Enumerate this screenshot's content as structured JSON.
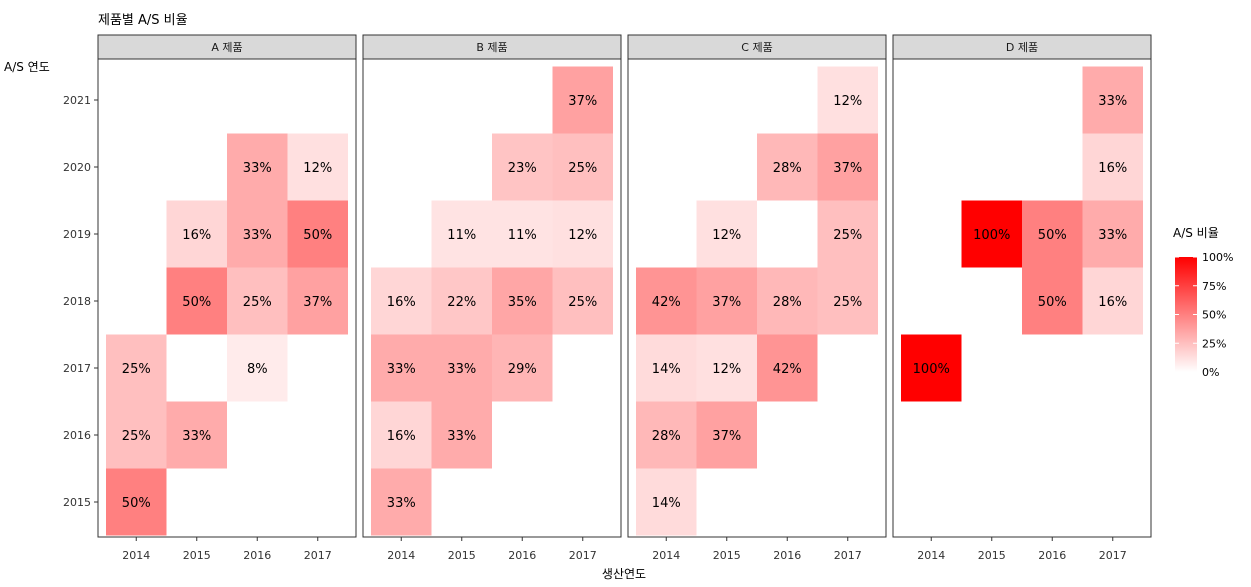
{
  "chart_data": {
    "type": "heatmap",
    "title": "제품별 A/S 비율",
    "xlabel": "생산연도",
    "ylabel": "A/S 연도",
    "x_categories": [
      "2014",
      "2015",
      "2016",
      "2017"
    ],
    "y_categories": [
      "2015",
      "2016",
      "2017",
      "2018",
      "2019",
      "2020",
      "2021"
    ],
    "legend": {
      "title": "A/S 비율",
      "position": "right",
      "labels": [
        "100%",
        "75%",
        "50%",
        "25%",
        "0%"
      ],
      "range": [
        0,
        100
      ],
      "low_color": "#ffffff",
      "high_color": "#ff0000"
    },
    "panels": [
      {
        "label": "A 제품",
        "cells": [
          {
            "x": "2014",
            "y": "2015",
            "value": 50,
            "label": "50%"
          },
          {
            "x": "2014",
            "y": "2016",
            "value": 25,
            "label": "25%"
          },
          {
            "x": "2015",
            "y": "2016",
            "value": 33,
            "label": "33%"
          },
          {
            "x": "2014",
            "y": "2017",
            "value": 25,
            "label": "25%"
          },
          {
            "x": "2016",
            "y": "2017",
            "value": 8,
            "label": "8%"
          },
          {
            "x": "2015",
            "y": "2018",
            "value": 50,
            "label": "50%"
          },
          {
            "x": "2016",
            "y": "2018",
            "value": 25,
            "label": "25%"
          },
          {
            "x": "2017",
            "y": "2018",
            "value": 37,
            "label": "37%"
          },
          {
            "x": "2015",
            "y": "2019",
            "value": 16,
            "label": "16%"
          },
          {
            "x": "2016",
            "y": "2019",
            "value": 33,
            "label": "33%"
          },
          {
            "x": "2017",
            "y": "2019",
            "value": 50,
            "label": "50%"
          },
          {
            "x": "2016",
            "y": "2020",
            "value": 33,
            "label": "33%"
          },
          {
            "x": "2017",
            "y": "2020",
            "value": 12,
            "label": "12%"
          }
        ]
      },
      {
        "label": "B 제품",
        "cells": [
          {
            "x": "2014",
            "y": "2015",
            "value": 33,
            "label": "33%"
          },
          {
            "x": "2014",
            "y": "2016",
            "value": 16,
            "label": "16%"
          },
          {
            "x": "2015",
            "y": "2016",
            "value": 33,
            "label": "33%"
          },
          {
            "x": "2014",
            "y": "2017",
            "value": 33,
            "label": "33%"
          },
          {
            "x": "2015",
            "y": "2017",
            "value": 33,
            "label": "33%"
          },
          {
            "x": "2016",
            "y": "2017",
            "value": 29,
            "label": "29%"
          },
          {
            "x": "2014",
            "y": "2018",
            "value": 16,
            "label": "16%"
          },
          {
            "x": "2015",
            "y": "2018",
            "value": 22,
            "label": "22%"
          },
          {
            "x": "2016",
            "y": "2018",
            "value": 35,
            "label": "35%"
          },
          {
            "x": "2017",
            "y": "2018",
            "value": 25,
            "label": "25%"
          },
          {
            "x": "2015",
            "y": "2019",
            "value": 11,
            "label": "11%"
          },
          {
            "x": "2016",
            "y": "2019",
            "value": 11,
            "label": "11%"
          },
          {
            "x": "2017",
            "y": "2019",
            "value": 12,
            "label": "12%"
          },
          {
            "x": "2016",
            "y": "2020",
            "value": 23,
            "label": "23%"
          },
          {
            "x": "2017",
            "y": "2020",
            "value": 25,
            "label": "25%"
          },
          {
            "x": "2017",
            "y": "2021",
            "value": 37,
            "label": "37%"
          }
        ]
      },
      {
        "label": "C 제품",
        "cells": [
          {
            "x": "2014",
            "y": "2015",
            "value": 14,
            "label": "14%"
          },
          {
            "x": "2014",
            "y": "2016",
            "value": 28,
            "label": "28%"
          },
          {
            "x": "2015",
            "y": "2016",
            "value": 37,
            "label": "37%"
          },
          {
            "x": "2014",
            "y": "2017",
            "value": 14,
            "label": "14%"
          },
          {
            "x": "2015",
            "y": "2017",
            "value": 12,
            "label": "12%"
          },
          {
            "x": "2016",
            "y": "2017",
            "value": 42,
            "label": "42%"
          },
          {
            "x": "2014",
            "y": "2018",
            "value": 42,
            "label": "42%"
          },
          {
            "x": "2015",
            "y": "2018",
            "value": 37,
            "label": "37%"
          },
          {
            "x": "2016",
            "y": "2018",
            "value": 28,
            "label": "28%"
          },
          {
            "x": "2017",
            "y": "2018",
            "value": 25,
            "label": "25%"
          },
          {
            "x": "2015",
            "y": "2019",
            "value": 12,
            "label": "12%"
          },
          {
            "x": "2016",
            "y": "2019",
            "value": 0,
            "label": ""
          },
          {
            "x": "2017",
            "y": "2019",
            "value": 25,
            "label": "25%"
          },
          {
            "x": "2016",
            "y": "2020",
            "value": 28,
            "label": "28%"
          },
          {
            "x": "2017",
            "y": "2020",
            "value": 37,
            "label": "37%"
          },
          {
            "x": "2017",
            "y": "2021",
            "value": 12,
            "label": "12%"
          }
        ]
      },
      {
        "label": "D 제품",
        "cells": [
          {
            "x": "2014",
            "y": "2017",
            "value": 100,
            "label": "100%"
          },
          {
            "x": "2016",
            "y": "2018",
            "value": 50,
            "label": "50%"
          },
          {
            "x": "2017",
            "y": "2018",
            "value": 16,
            "label": "16%"
          },
          {
            "x": "2015",
            "y": "2019",
            "value": 100,
            "label": "100%"
          },
          {
            "x": "2016",
            "y": "2019",
            "value": 50,
            "label": "50%"
          },
          {
            "x": "2017",
            "y": "2019",
            "value": 33,
            "label": "33%"
          },
          {
            "x": "2017",
            "y": "2020",
            "value": 16,
            "label": "16%"
          },
          {
            "x": "2017",
            "y": "2021",
            "value": 33,
            "label": "33%"
          }
        ]
      }
    ]
  }
}
